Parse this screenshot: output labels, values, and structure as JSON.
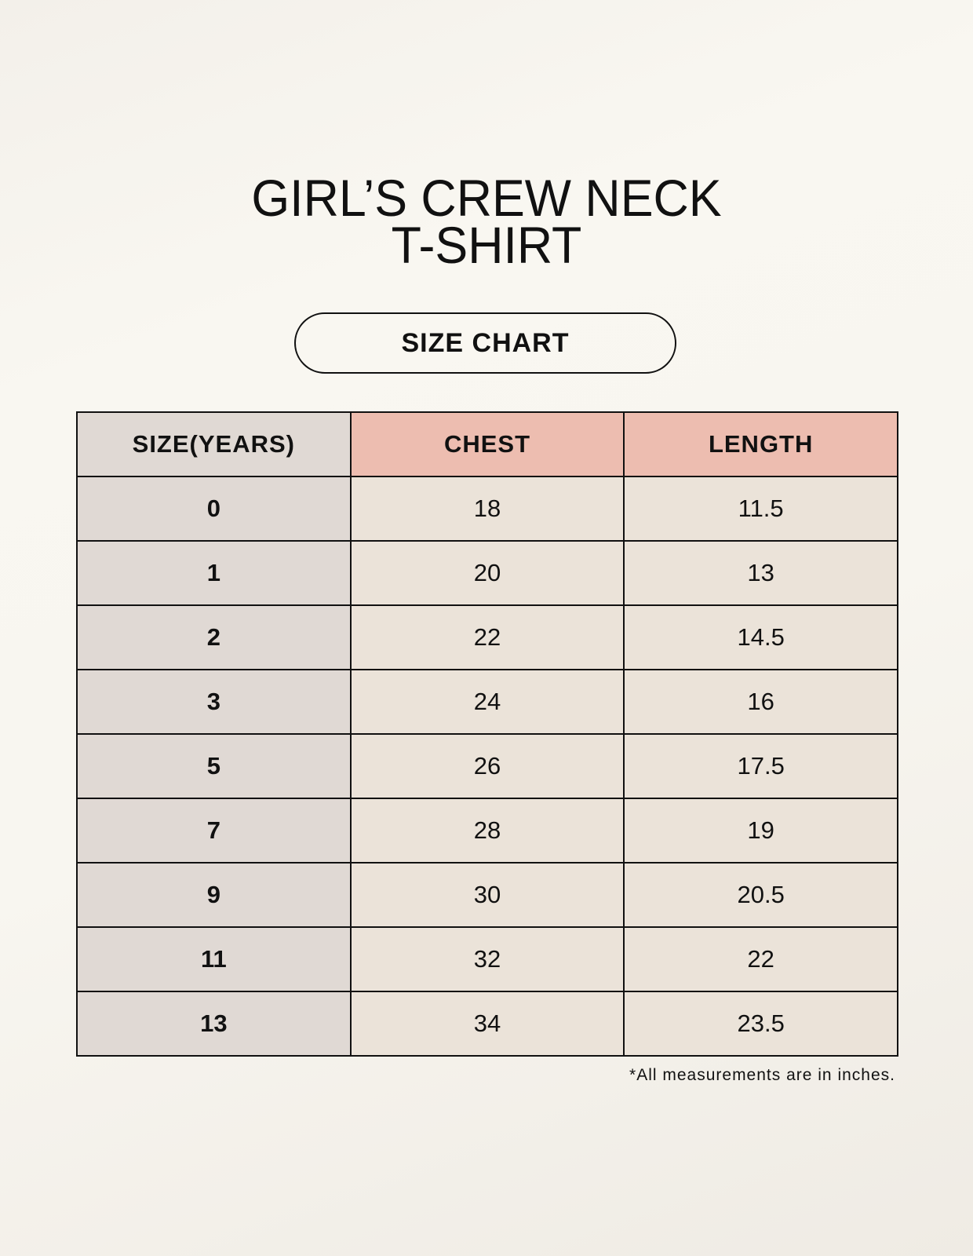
{
  "title": {
    "line1": "GIRL’S CREW NECK",
    "line2": "T-SHIRT"
  },
  "badge": "SIZE CHART",
  "table": {
    "headers": [
      "SIZE(YEARS)",
      "CHEST",
      "LENGTH"
    ],
    "rows": [
      [
        "0",
        "18",
        "11.5"
      ],
      [
        "1",
        "20",
        "13"
      ],
      [
        "2",
        "22",
        "14.5"
      ],
      [
        "3",
        "24",
        "16"
      ],
      [
        "5",
        "26",
        "17.5"
      ],
      [
        "7",
        "28",
        "19"
      ],
      [
        "9",
        "30",
        "20.5"
      ],
      [
        "11",
        "32",
        "22"
      ],
      [
        "13",
        "34",
        "23.5"
      ]
    ]
  },
  "footnote": "*All measurements are in inches.",
  "colors": {
    "size_column": "#e0d9d4",
    "header_accent": "#edbdb0",
    "cell": "#ebe3d9"
  }
}
